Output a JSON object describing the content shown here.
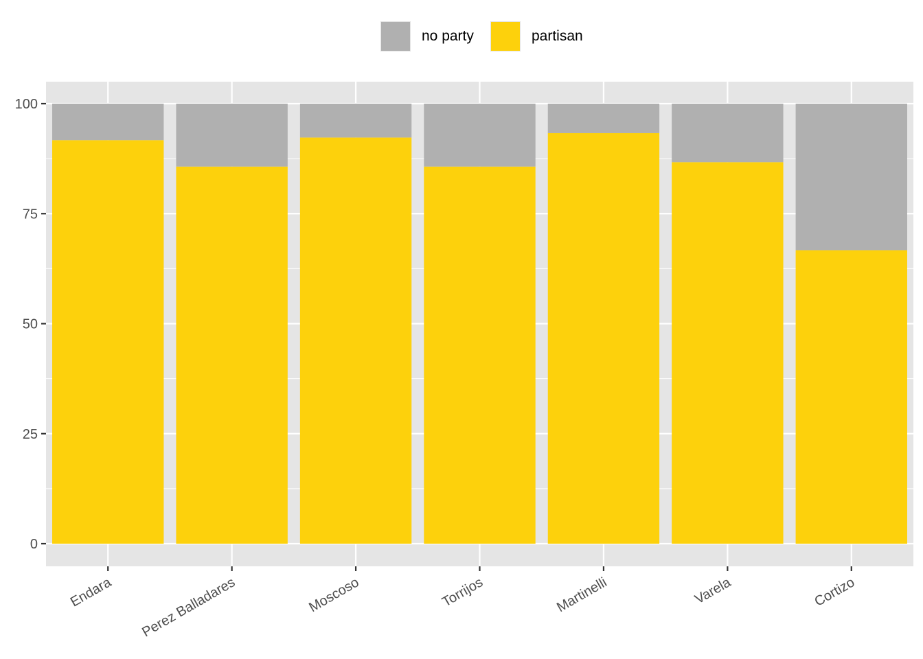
{
  "legend": {
    "items": [
      {
        "label": "no party",
        "color": "#b0b0b0"
      },
      {
        "label": "partisan",
        "color": "#fdd10c"
      }
    ]
  },
  "chart_data": {
    "type": "bar",
    "stacked": true,
    "categories": [
      "Endara",
      "Perez Balladares",
      "Moscoso",
      "Torrijos",
      "Martinelli",
      "Varela",
      "Cortizo"
    ],
    "series": [
      {
        "name": "partisan",
        "color": "#fdd10c",
        "values": [
          91.7,
          85.7,
          92.3,
          85.7,
          93.3,
          86.7,
          66.7
        ]
      },
      {
        "name": "no party",
        "color": "#b0b0b0",
        "values": [
          8.3,
          14.3,
          7.7,
          14.3,
          6.7,
          13.3,
          33.3
        ]
      }
    ],
    "y_ticks": [
      0,
      25,
      50,
      75,
      100
    ],
    "ylim": [
      -5,
      105
    ],
    "xlabel": "",
    "ylabel": "",
    "grid": true,
    "legend_position": "top",
    "panel_color": "#e5e5e5"
  }
}
